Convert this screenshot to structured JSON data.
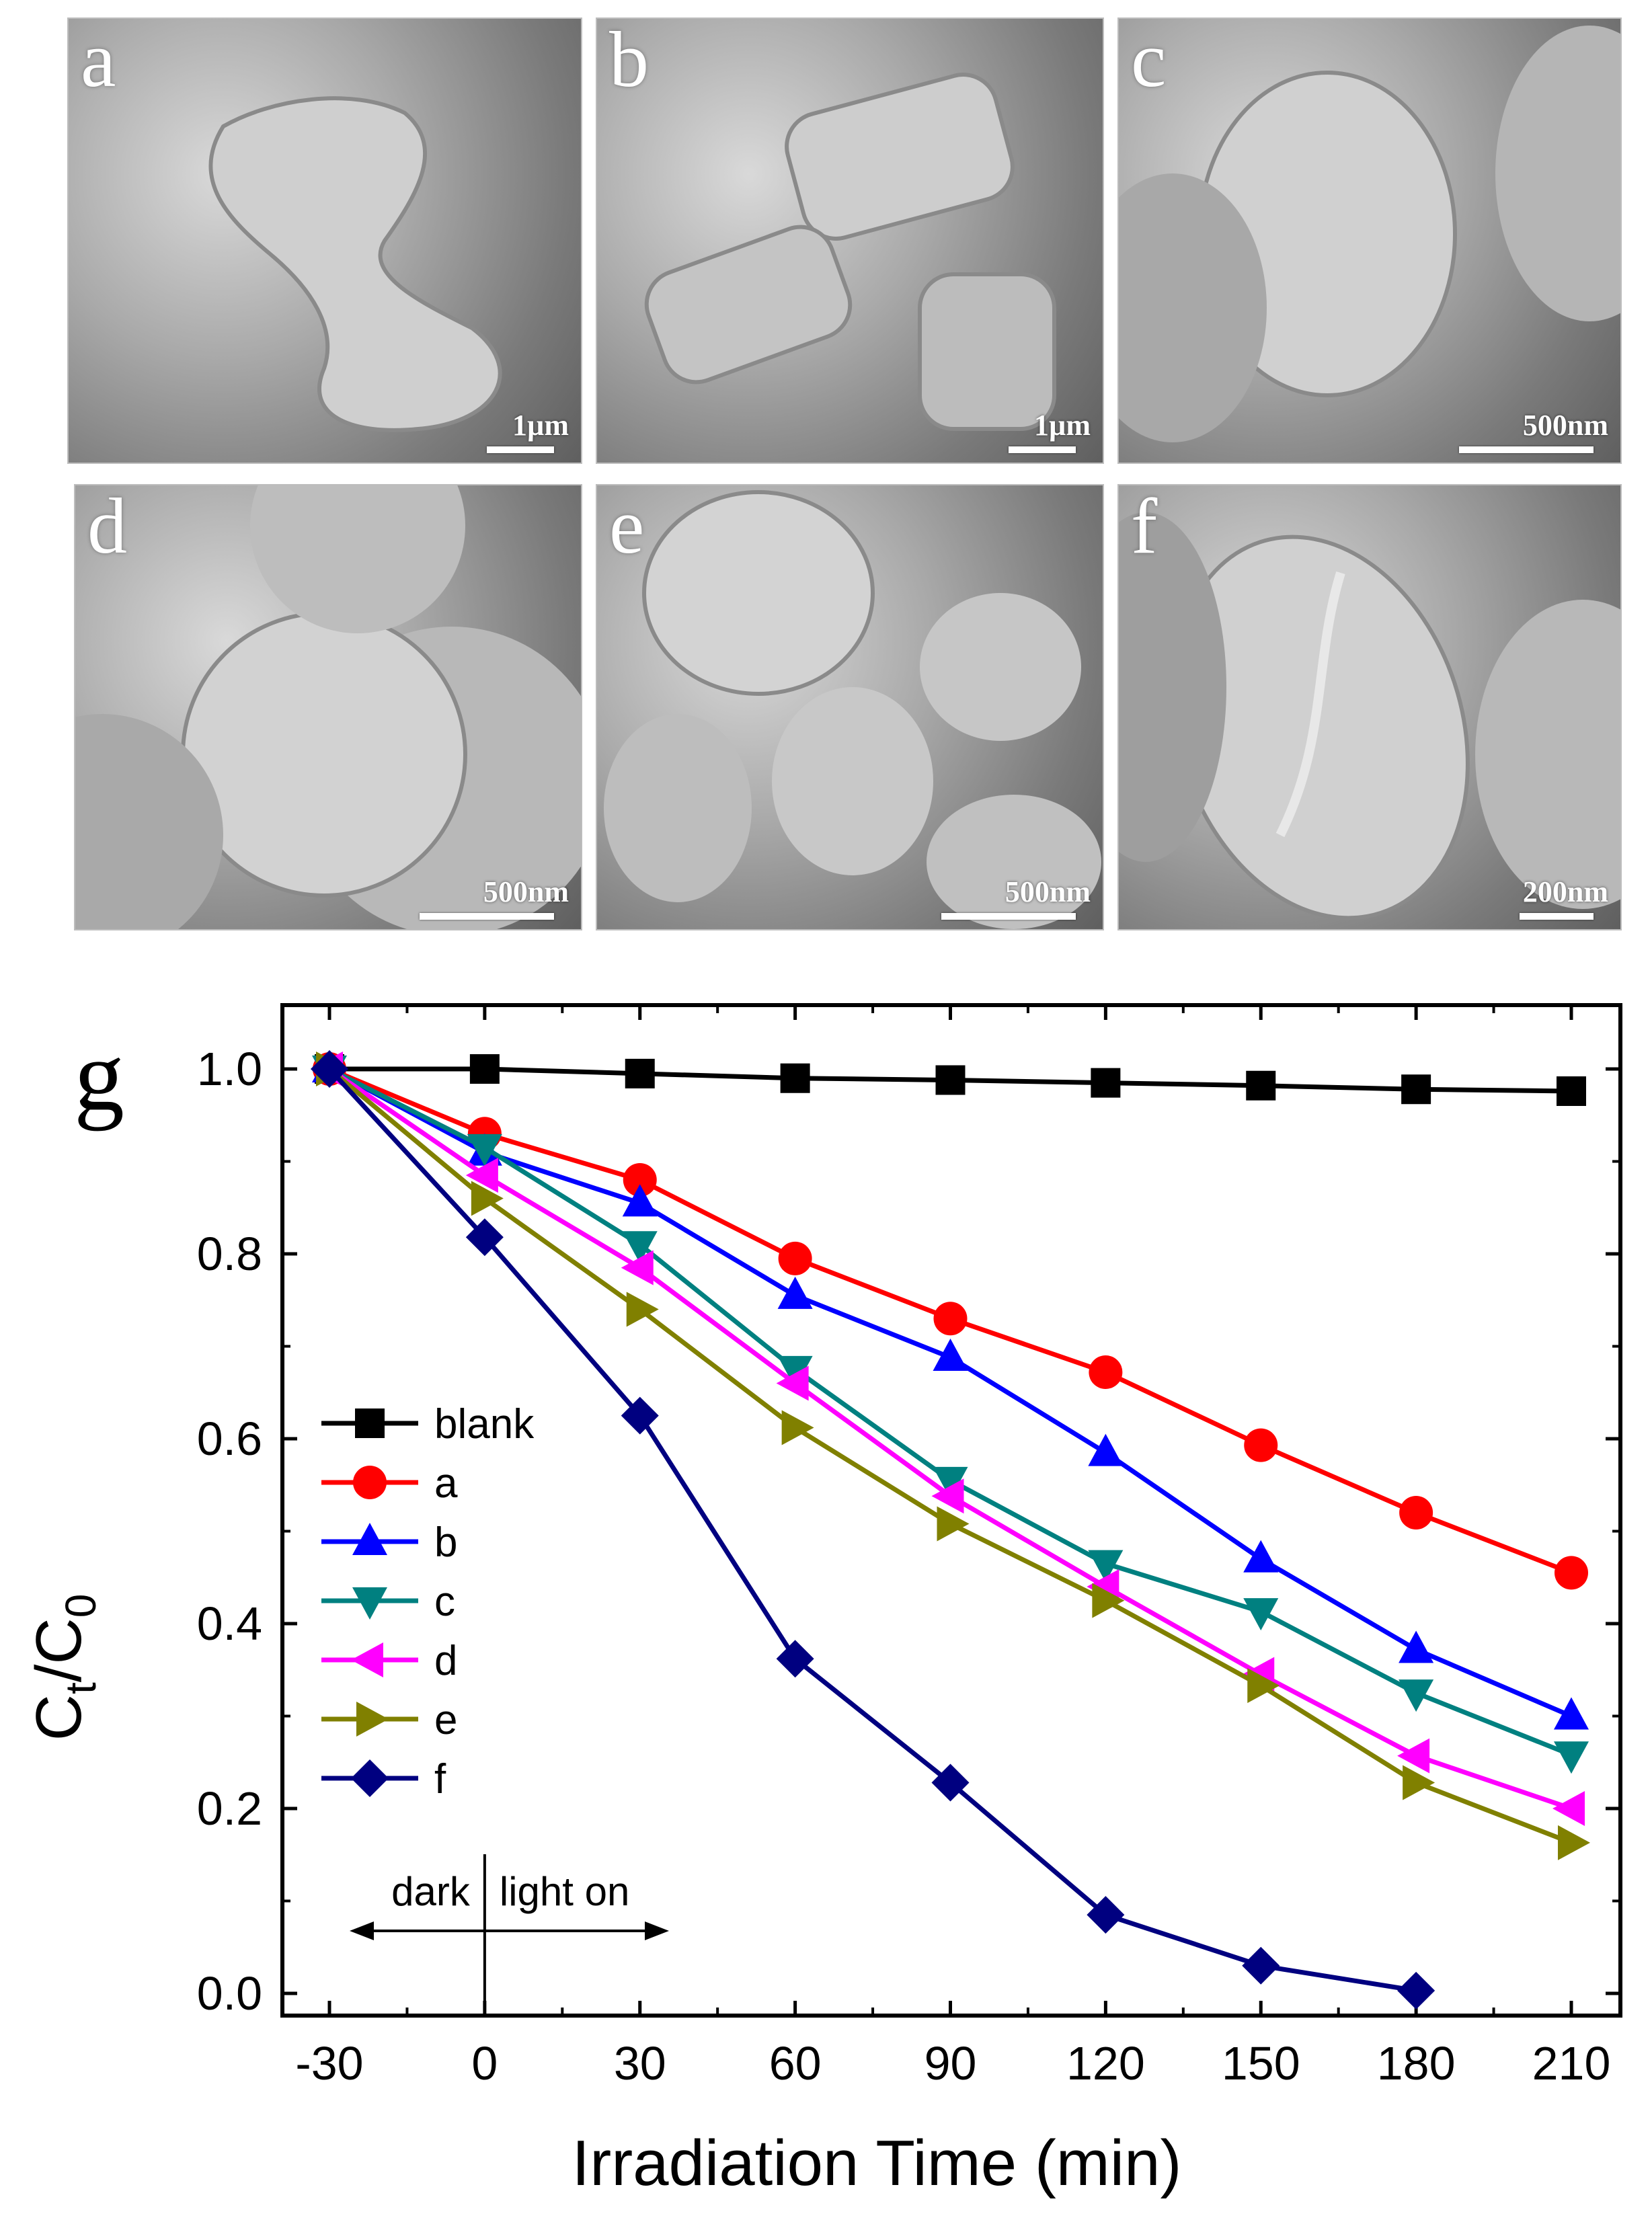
{
  "panels": [
    {
      "letter": "a",
      "scale": "1µm"
    },
    {
      "letter": "b",
      "scale": "1µm"
    },
    {
      "letter": "c",
      "scale": "500nm"
    },
    {
      "letter": "d",
      "scale": "500nm"
    },
    {
      "letter": "e",
      "scale": "500nm"
    },
    {
      "letter": "f",
      "scale": "200nm"
    }
  ],
  "chart_panel_letter": "g",
  "chart_data": {
    "type": "line",
    "xlabel": "Irradiation Time (min)",
    "ylabel_main": "C",
    "ylabel_sub_t": "t",
    "ylabel_slash": "/C",
    "ylabel_sub_0": "0",
    "x": [
      -30,
      0,
      30,
      60,
      90,
      120,
      150,
      180,
      210
    ],
    "xticks": [
      "-30",
      "0",
      "30",
      "60",
      "90",
      "120",
      "150",
      "180",
      "210"
    ],
    "yticks": [
      "0.0",
      "0.2",
      "0.4",
      "0.6",
      "0.8",
      "1.0"
    ],
    "xlim": [
      -30,
      210
    ],
    "ylim": [
      0.0,
      1.0
    ],
    "annotation_dark": "dark",
    "annotation_light": "light on",
    "series": [
      {
        "name": "blank",
        "color": "#000000",
        "marker": "square",
        "values": [
          1.0,
          1.0,
          0.995,
          0.99,
          0.988,
          0.985,
          0.982,
          0.978,
          0.976
        ]
      },
      {
        "name": "a",
        "color": "#ff0000",
        "marker": "circle",
        "values": [
          1.0,
          0.93,
          0.88,
          0.795,
          0.73,
          0.672,
          0.593,
          0.52,
          0.455
        ]
      },
      {
        "name": "b",
        "color": "#0000ff",
        "marker": "triangle-up",
        "values": [
          1.0,
          0.91,
          0.855,
          0.755,
          0.688,
          0.585,
          0.47,
          0.372,
          0.3
        ]
      },
      {
        "name": "c",
        "color": "#008080",
        "marker": "triangle-down",
        "values": [
          1.0,
          0.915,
          0.81,
          0.675,
          0.555,
          0.465,
          0.413,
          0.325,
          0.258
        ]
      },
      {
        "name": "d",
        "color": "#ff00ff",
        "marker": "triangle-left",
        "values": [
          1.0,
          0.885,
          0.785,
          0.66,
          0.538,
          0.44,
          0.345,
          0.257,
          0.2
        ]
      },
      {
        "name": "e",
        "color": "#808000",
        "marker": "triangle-right",
        "values": [
          1.0,
          0.86,
          0.74,
          0.612,
          0.508,
          0.425,
          0.333,
          0.228,
          0.163
        ]
      },
      {
        "name": "f",
        "color": "#000080",
        "marker": "diamond",
        "values": [
          1.0,
          0.818,
          0.625,
          0.362,
          0.228,
          0.085,
          0.03,
          0.003,
          null
        ]
      }
    ]
  }
}
